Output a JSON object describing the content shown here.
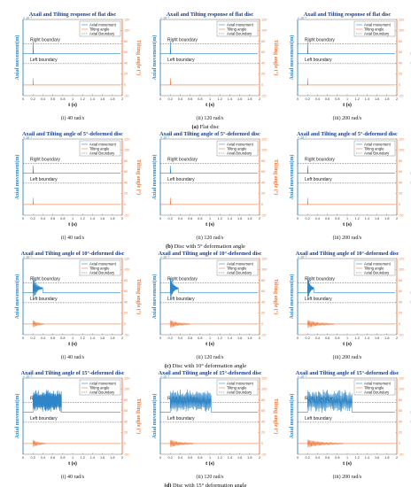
{
  "figure": {
    "rows": [
      {
        "caption_letter": "(a)",
        "caption_text": "Flat disc",
        "panels": [
          {
            "sublabel": "(i) 40 rad/s",
            "title": "Axail and Tilting response of flat disc"
          },
          {
            "sublabel": "(ii) 120 rad/s",
            "title": "Axail and Tilting response of flat disc"
          },
          {
            "sublabel": "(iii) 200 rad/s",
            "title": "Axail and Tilting response of flat disc"
          }
        ]
      },
      {
        "caption_letter": "(b)",
        "caption_text": "Disc with 5° deformation angle",
        "panels": [
          {
            "sublabel": "(i) 40 rad/s",
            "title": "Axail and Tilting angle of 5°-deformed disc"
          },
          {
            "sublabel": "(ii) 120 rad/s",
            "title": "Axail and Tilting angle of 5°-deformed disc"
          },
          {
            "sublabel": "(iii) 200 rad/s",
            "title": "Axail and Tilting angle of 5°-deformed disc"
          }
        ]
      },
      {
        "caption_letter": "(c)",
        "caption_text": "Disc with 10° deformation angle",
        "panels": [
          {
            "sublabel": "(i) 40 rad/s",
            "title": "Axail and Tilting angle of 10°-deformed disc"
          },
          {
            "sublabel": "(ii) 120 rad/s",
            "title": "Axail and Tilting angle of 10°-deformed disc"
          },
          {
            "sublabel": "(iii) 200 rad/s",
            "title": "Axail and Tilting angle of 10°-deformed disc"
          }
        ]
      },
      {
        "caption_letter": "(d)",
        "caption_text": "Disc with 15° deformation angle",
        "panels": [
          {
            "sublabel": "(i) 40 rad/s",
            "title": "Axail and Tilting angle of 15°-deformed disc"
          },
          {
            "sublabel": "(ii) 120 rad/s",
            "title": "Axail and Tilting angle of 15°-deformed disc"
          },
          {
            "sublabel": "(iii) 200 rad/s",
            "title": "Axail and Tilting angle of 15°-deformed disc"
          }
        ]
      }
    ]
  },
  "chart_data": {
    "type": "line",
    "xlabel": "t (s)",
    "ylabel_left": "Axial movement(m)",
    "ylabel_right": "Tilting angle (°)",
    "left_exponent": "× 10⁻³",
    "xlim": [
      0,
      2
    ],
    "x_ticks": [
      "0",
      "0.2",
      "0.4",
      "0.6",
      "0.8",
      "1",
      "1.2",
      "1.4",
      "1.6",
      "1.8",
      "2"
    ],
    "right_ticks": [
      "-20",
      "0",
      "20",
      "40",
      "60",
      "80",
      "100",
      "120"
    ],
    "right_ylim": [
      -20,
      120
    ],
    "grid": false,
    "legend": {
      "placement": "top-right",
      "entries": [
        "Axial movement",
        "Tilting angle",
        "Axial Boundary"
      ]
    },
    "annotations": {
      "right_boundary": "Right boundary",
      "left_boundary": "Left boundary"
    },
    "colors": {
      "axial": "#2e86c8",
      "tilting": "#f07a3c",
      "boundary": "#555555",
      "title": "#1c3f8f"
    }
  }
}
